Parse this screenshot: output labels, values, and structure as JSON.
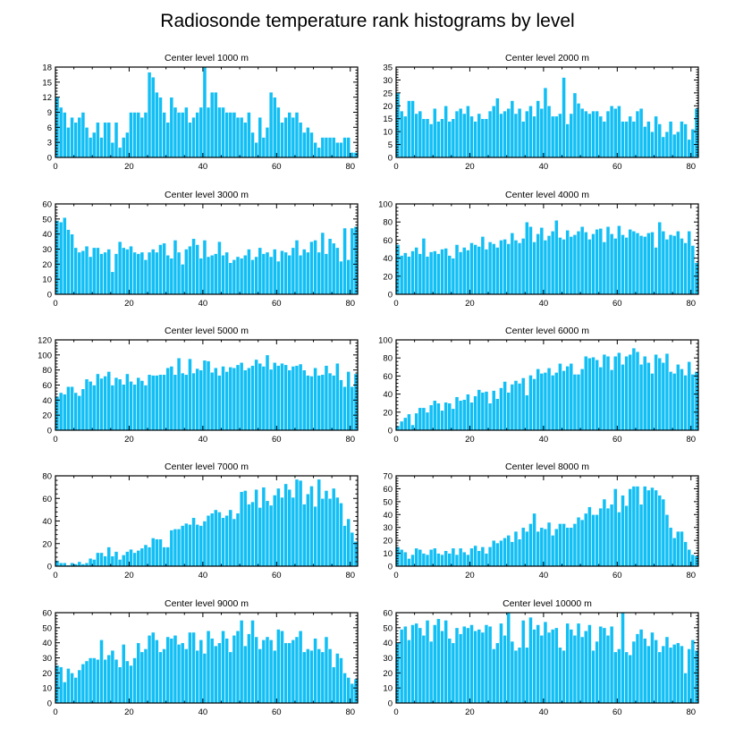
{
  "figure": {
    "title": "Radiosonde temperature rank histograms by level",
    "bar_color": "#12bff5",
    "background": "#ffffff"
  },
  "chart_data": [
    {
      "type": "bar",
      "title": "Center level 1000 m",
      "x_range": [
        0,
        82
      ],
      "ylim": [
        0,
        18
      ],
      "x_ticks": [
        0,
        20,
        40,
        60,
        80
      ],
      "y_ticks": [
        0,
        3,
        6,
        9,
        12,
        15,
        18
      ],
      "values": [
        12,
        10,
        9,
        6,
        8,
        7,
        8,
        9,
        6,
        4,
        5,
        7,
        4,
        7,
        7,
        3,
        7,
        2,
        4,
        5,
        9,
        9,
        9,
        8,
        9,
        17,
        16,
        13,
        12,
        9,
        7,
        12,
        10,
        9,
        9,
        10,
        7,
        8,
        9,
        10,
        18,
        10,
        13,
        13,
        10,
        10,
        9,
        9,
        9,
        8,
        8,
        7,
        9,
        5,
        3,
        8,
        4,
        6,
        13,
        12,
        10,
        7,
        8,
        9,
        8,
        9,
        7,
        5,
        6,
        5,
        3,
        2,
        4,
        4,
        4,
        4,
        3,
        3,
        4,
        4,
        1,
        1
      ]
    },
    {
      "type": "bar",
      "title": "Center level 2000 m",
      "x_range": [
        0,
        82
      ],
      "ylim": [
        0,
        35
      ],
      "x_ticks": [
        0,
        20,
        40,
        60,
        80
      ],
      "y_ticks": [
        0,
        5,
        10,
        15,
        20,
        25,
        30,
        35
      ],
      "values": [
        25,
        18,
        16,
        22,
        22,
        17,
        18,
        15,
        15,
        13,
        19,
        14,
        15,
        20,
        14,
        15,
        18,
        19,
        17,
        20,
        16,
        14,
        17,
        15,
        15,
        18,
        20,
        23,
        17,
        18,
        19,
        22,
        17,
        19,
        14,
        18,
        20,
        16,
        22,
        19,
        27,
        20,
        16,
        16,
        17,
        31,
        13,
        17,
        25,
        21,
        19,
        18,
        17,
        18,
        18,
        16,
        14,
        18,
        20,
        19,
        20,
        14,
        14,
        16,
        14,
        18,
        19,
        12,
        14,
        10,
        16,
        13,
        8,
        10,
        14,
        9,
        10,
        14,
        13,
        7,
        11,
        19
      ]
    },
    {
      "type": "bar",
      "title": "Center level 3000 m",
      "x_range": [
        0,
        82
      ],
      "ylim": [
        0,
        60
      ],
      "x_ticks": [
        0,
        20,
        40,
        60,
        80
      ],
      "y_ticks": [
        0,
        10,
        20,
        30,
        40,
        50,
        60
      ],
      "values": [
        49,
        48,
        51,
        43,
        40,
        31,
        28,
        29,
        32,
        25,
        31,
        31,
        27,
        28,
        30,
        15,
        27,
        35,
        31,
        30,
        32,
        28,
        27,
        28,
        23,
        28,
        30,
        28,
        33,
        34,
        26,
        24,
        36,
        28,
        20,
        30,
        32,
        37,
        33,
        24,
        36,
        25,
        26,
        27,
        35,
        26,
        28,
        21,
        23,
        25,
        24,
        26,
        30,
        23,
        25,
        31,
        27,
        28,
        25,
        30,
        22,
        29,
        28,
        26,
        31,
        36,
        26,
        30,
        28,
        35,
        36,
        28,
        41,
        27,
        37,
        34,
        31,
        22,
        44,
        23,
        44,
        45
      ]
    },
    {
      "type": "bar",
      "title": "Center level 4000 m",
      "x_range": [
        0,
        82
      ],
      "ylim": [
        0,
        100
      ],
      "x_ticks": [
        0,
        20,
        40,
        60,
        80
      ],
      "y_ticks": [
        0,
        20,
        40,
        60,
        80,
        100
      ],
      "values": [
        55,
        43,
        46,
        42,
        48,
        52,
        45,
        62,
        42,
        47,
        48,
        45,
        50,
        51,
        43,
        40,
        55,
        47,
        52,
        49,
        57,
        55,
        53,
        64,
        50,
        58,
        56,
        52,
        60,
        61,
        56,
        68,
        60,
        57,
        62,
        80,
        75,
        58,
        67,
        74,
        60,
        65,
        70,
        82,
        63,
        61,
        71,
        64,
        66,
        70,
        75,
        69,
        61,
        67,
        72,
        73,
        58,
        75,
        67,
        62,
        76,
        66,
        63,
        72,
        70,
        68,
        65,
        64,
        68,
        69,
        52,
        80,
        70,
        61,
        66,
        65,
        70,
        62,
        57,
        70,
        54,
        35
      ]
    },
    {
      "type": "bar",
      "title": "Center level 5000 m",
      "x_range": [
        0,
        82
      ],
      "ylim": [
        0,
        120
      ],
      "x_ticks": [
        0,
        20,
        40,
        60,
        80
      ],
      "y_ticks": [
        0,
        20,
        40,
        60,
        80,
        100,
        120
      ],
      "values": [
        45,
        50,
        48,
        58,
        58,
        50,
        46,
        55,
        68,
        65,
        60,
        75,
        69,
        72,
        78,
        60,
        70,
        68,
        61,
        75,
        65,
        61,
        70,
        66,
        60,
        74,
        73,
        73,
        74,
        74,
        83,
        85,
        74,
        96,
        76,
        74,
        95,
        76,
        82,
        80,
        93,
        92,
        77,
        83,
        73,
        85,
        78,
        84,
        83,
        87,
        90,
        80,
        83,
        86,
        94,
        89,
        85,
        100,
        81,
        90,
        86,
        89,
        87,
        80,
        85,
        86,
        88,
        80,
        73,
        72,
        83,
        73,
        74,
        86,
        76,
        73,
        89,
        67,
        58,
        78,
        58,
        75
      ]
    },
    {
      "type": "bar",
      "title": "Center level 6000 m",
      "x_range": [
        0,
        82
      ],
      "ylim": [
        0,
        100
      ],
      "x_ticks": [
        0,
        20,
        40,
        60,
        80
      ],
      "y_ticks": [
        0,
        20,
        40,
        60,
        80,
        100
      ],
      "values": [
        5,
        10,
        14,
        18,
        6,
        19,
        25,
        25,
        20,
        28,
        33,
        30,
        22,
        31,
        30,
        24,
        37,
        33,
        34,
        40,
        31,
        38,
        45,
        42,
        43,
        30,
        44,
        35,
        47,
        54,
        42,
        51,
        55,
        52,
        58,
        39,
        61,
        57,
        68,
        63,
        64,
        69,
        61,
        64,
        74,
        66,
        71,
        74,
        62,
        62,
        68,
        82,
        80,
        81,
        78,
        70,
        84,
        82,
        67,
        82,
        86,
        73,
        82,
        84,
        91,
        87,
        73,
        82,
        75,
        63,
        84,
        80,
        75,
        85,
        65,
        63,
        73,
        68,
        61,
        76,
        62,
        65
      ]
    },
    {
      "type": "bar",
      "title": "Center level 7000 m",
      "x_range": [
        0,
        82
      ],
      "ylim": [
        0,
        80
      ],
      "x_ticks": [
        0,
        20,
        40,
        60,
        80
      ],
      "y_ticks": [
        0,
        20,
        40,
        60,
        80
      ],
      "values": [
        5,
        3,
        3,
        1,
        3,
        2,
        4,
        2,
        3,
        7,
        6,
        12,
        12,
        9,
        17,
        9,
        13,
        6,
        10,
        13,
        15,
        12,
        14,
        16,
        19,
        17,
        25,
        24,
        24,
        17,
        17,
        32,
        33,
        33,
        36,
        38,
        37,
        43,
        37,
        36,
        40,
        45,
        47,
        50,
        48,
        43,
        45,
        50,
        42,
        47,
        66,
        67,
        55,
        57,
        68,
        52,
        70,
        58,
        54,
        63,
        69,
        61,
        73,
        68,
        61,
        77,
        76,
        55,
        64,
        71,
        53,
        77,
        60,
        67,
        60,
        69,
        61,
        56,
        36,
        42,
        30,
        22
      ]
    },
    {
      "type": "bar",
      "title": "Center level 8000 m",
      "x_range": [
        0,
        82
      ],
      "ylim": [
        0,
        70
      ],
      "x_ticks": [
        0,
        20,
        40,
        60,
        80
      ],
      "y_ticks": [
        0,
        10,
        20,
        30,
        40,
        50,
        60,
        70
      ],
      "values": [
        15,
        13,
        11,
        6,
        9,
        14,
        13,
        10,
        9,
        13,
        14,
        10,
        9,
        12,
        10,
        14,
        9,
        14,
        11,
        9,
        14,
        16,
        12,
        15,
        10,
        15,
        20,
        18,
        20,
        22,
        24,
        19,
        27,
        21,
        30,
        27,
        33,
        41,
        27,
        30,
        29,
        34,
        24,
        29,
        33,
        33,
        30,
        30,
        33,
        38,
        36,
        41,
        46,
        40,
        40,
        45,
        52,
        45,
        48,
        60,
        42,
        55,
        47,
        60,
        62,
        62,
        48,
        62,
        59,
        61,
        59,
        55,
        52,
        40,
        30,
        22,
        27,
        27,
        19,
        13,
        9,
        8
      ]
    },
    {
      "type": "bar",
      "title": "Center level 9000 m",
      "x_range": [
        0,
        82
      ],
      "ylim": [
        0,
        60
      ],
      "x_ticks": [
        0,
        20,
        40,
        60,
        80
      ],
      "y_ticks": [
        0,
        10,
        20,
        30,
        40,
        50,
        60
      ],
      "values": [
        25,
        24,
        14,
        23,
        20,
        17,
        22,
        26,
        28,
        30,
        30,
        29,
        42,
        29,
        32,
        35,
        29,
        24,
        39,
        28,
        25,
        30,
        40,
        34,
        36,
        45,
        47,
        42,
        34,
        36,
        44,
        43,
        45,
        39,
        40,
        36,
        47,
        47,
        35,
        42,
        33,
        48,
        43,
        38,
        40,
        48,
        43,
        34,
        45,
        48,
        55,
        38,
        46,
        55,
        44,
        36,
        42,
        44,
        42,
        35,
        49,
        48,
        40,
        40,
        42,
        44,
        48,
        34,
        36,
        35,
        43,
        36,
        34,
        44,
        36,
        24,
        33,
        30,
        20,
        17,
        13,
        16
      ]
    },
    {
      "type": "bar",
      "title": "Center level 10000 m",
      "x_range": [
        0,
        82
      ],
      "ylim": [
        0,
        60
      ],
      "x_ticks": [
        0,
        20,
        40,
        60,
        80
      ],
      "y_ticks": [
        0,
        10,
        20,
        30,
        40,
        50,
        60
      ],
      "values": [
        40,
        49,
        51,
        42,
        52,
        53,
        50,
        45,
        55,
        41,
        52,
        56,
        48,
        55,
        43,
        40,
        50,
        46,
        51,
        50,
        52,
        48,
        49,
        47,
        52,
        51,
        36,
        40,
        53,
        45,
        60,
        41,
        35,
        37,
        55,
        37,
        57,
        49,
        52,
        45,
        54,
        47,
        49,
        50,
        37,
        35,
        53,
        49,
        45,
        53,
        44,
        48,
        52,
        35,
        41,
        51,
        50,
        45,
        51,
        34,
        36,
        60,
        34,
        32,
        41,
        46,
        49,
        43,
        38,
        47,
        42,
        34,
        38,
        44,
        37,
        39,
        40,
        38,
        20,
        36,
        42,
        35
      ]
    }
  ]
}
